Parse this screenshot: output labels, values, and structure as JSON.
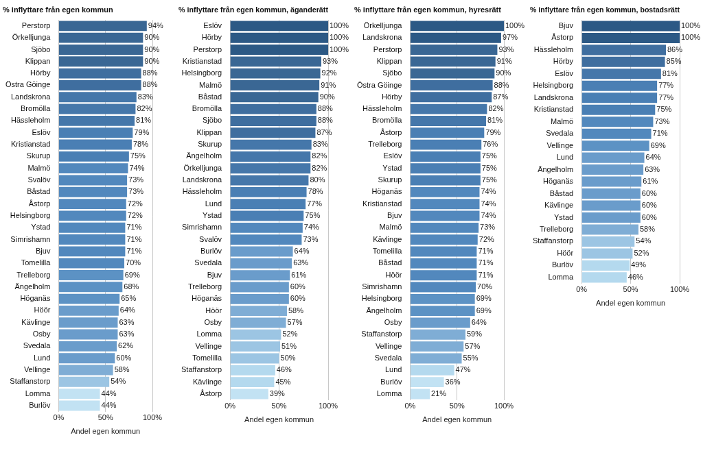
{
  "chart_data": [
    {
      "type": "bar",
      "orientation": "horizontal",
      "title": "% inflyttare från egen kommun",
      "x_label": "Andel egen kommun",
      "categories": [
        "Perstorp",
        "Örkelljunga",
        "Sjöbo",
        "Klippan",
        "Hörby",
        "Östra Göinge",
        "Landskrona",
        "Bromölla",
        "Hässleholm",
        "Eslöv",
        "Kristianstad",
        "Skurup",
        "Malmö",
        "Svalöv",
        "Båstad",
        "Åstorp",
        "Helsingborg",
        "Ystad",
        "Simrishamn",
        "Bjuv",
        "Tomelilla",
        "Trelleborg",
        "Ängelholm",
        "Höganäs",
        "Höör",
        "Kävlinge",
        "Osby",
        "Svedala",
        "Lund",
        "Vellinge",
        "Staffanstorp",
        "Lomma",
        "Burlöv"
      ],
      "values": [
        94,
        90,
        90,
        90,
        88,
        88,
        83,
        82,
        81,
        79,
        78,
        75,
        74,
        73,
        73,
        72,
        72,
        71,
        71,
        71,
        70,
        69,
        68,
        65,
        64,
        63,
        63,
        62,
        60,
        58,
        54,
        44,
        44
      ],
      "value_labels": [
        "94%",
        "90%",
        "90%",
        "90%",
        "88%",
        "88%",
        "83%",
        "82%",
        "81%",
        "79%",
        "78%",
        "75%",
        "74%",
        "73%",
        "73%",
        "72%",
        "72%",
        "71%",
        "71%",
        "71%",
        "70%",
        "69%",
        "68%",
        "65%",
        "64%",
        "63%",
        "63%",
        "62%",
        "60%",
        "58%",
        "54%",
        "44%",
        "44%"
      ],
      "colors": [
        "#3a6794",
        "#3a6794",
        "#3a6794",
        "#3a6794",
        "#3f6e9f",
        "#3f6e9f",
        "#4577aa",
        "#4577aa",
        "#4577aa",
        "#4a7fb4",
        "#4a7fb4",
        "#4a7fb4",
        "#5288bd",
        "#5288bd",
        "#5288bd",
        "#5288bd",
        "#5288bd",
        "#5288bd",
        "#5288bd",
        "#5288bd",
        "#5288bd",
        "#5c92c4",
        "#5c92c4",
        "#5c92c4",
        "#6a9ccb",
        "#6a9ccb",
        "#6a9ccb",
        "#6a9ccb",
        "#6a9ccb",
        "#7fadd5",
        "#9cc5e3",
        "#c2e2f3",
        "#c2e2f3"
      ],
      "xlim": [
        0,
        100
      ],
      "xticks": [
        {
          "value": 0,
          "label": "0%"
        },
        {
          "value": 50,
          "label": "50%"
        },
        {
          "value": 100,
          "label": "100%"
        }
      ],
      "grid": true,
      "data_labels": true
    },
    {
      "type": "bar",
      "orientation": "horizontal",
      "title": "% inflyttare från egen kommun, äganderätt",
      "x_label": "Andel egen kommun",
      "categories": [
        "Eslöv",
        "Hörby",
        "Perstorp",
        "Kristianstad",
        "Helsingborg",
        "Malmö",
        "Båstad",
        "Bromölla",
        "Sjöbo",
        "Klippan",
        "Skurup",
        "Ängelholm",
        "Örkelljunga",
        "Landskrona",
        "Hässleholm",
        "Lund",
        "Ystad",
        "Simrishamn",
        "Svalöv",
        "Burlöv",
        "Svedala",
        "Bjuv",
        "Trelleborg",
        "Höganäs",
        "Höör",
        "Osby",
        "Lomma",
        "Vellinge",
        "Tomelilla",
        "Staffanstorp",
        "Kävlinge",
        "Åstorp"
      ],
      "values": [
        100,
        100,
        100,
        93,
        92,
        91,
        90,
        88,
        88,
        87,
        83,
        82,
        82,
        80,
        78,
        77,
        75,
        74,
        73,
        64,
        63,
        61,
        60,
        60,
        58,
        57,
        52,
        51,
        50,
        46,
        45,
        39
      ],
      "value_labels": [
        "100%",
        "100%",
        "100%",
        "93%",
        "92%",
        "91%",
        "90%",
        "88%",
        "88%",
        "87%",
        "83%",
        "82%",
        "82%",
        "80%",
        "78%",
        "77%",
        "75%",
        "74%",
        "73%",
        "64%",
        "63%",
        "61%",
        "60%",
        "60%",
        "58%",
        "57%",
        "52%",
        "51%",
        "50%",
        "46%",
        "45%",
        "39%"
      ],
      "colors": [
        "#2c5985",
        "#2c5985",
        "#2c5985",
        "#3a6794",
        "#3a6794",
        "#3a6794",
        "#3a6794",
        "#3f6e9f",
        "#3f6e9f",
        "#3f6e9f",
        "#4577aa",
        "#4577aa",
        "#4577aa",
        "#4577aa",
        "#4a7fb4",
        "#4a7fb4",
        "#4a7fb4",
        "#5288bd",
        "#5288bd",
        "#6a9ccb",
        "#6a9ccb",
        "#6a9ccb",
        "#6a9ccb",
        "#6a9ccb",
        "#7fadd5",
        "#7fadd5",
        "#9cc5e3",
        "#9cc5e3",
        "#9cc5e3",
        "#b4d9ee",
        "#b4d9ee",
        "#c2e2f3"
      ],
      "xlim": [
        0,
        100
      ],
      "xticks": [
        {
          "value": 0,
          "label": "0%"
        },
        {
          "value": 50,
          "label": "50%"
        },
        {
          "value": 100,
          "label": "100%"
        }
      ],
      "grid": true,
      "data_labels": true
    },
    {
      "type": "bar",
      "orientation": "horizontal",
      "title": "% inflyttare från egen kommun, hyresrätt",
      "x_label": "Andel egen kommun",
      "categories": [
        "Örkelljunga",
        "Landskrona",
        "Perstorp",
        "Klippan",
        "Sjöbo",
        "Östra Göinge",
        "Hörby",
        "Hässleholm",
        "Bromölla",
        "Åstorp",
        "Trelleborg",
        "Eslöv",
        "Ystad",
        "Skurup",
        "Höganäs",
        "Kristianstad",
        "Bjuv",
        "Malmö",
        "Kävlinge",
        "Tomelilla",
        "Båstad",
        "Höör",
        "Simrishamn",
        "Helsingborg",
        "Ängelholm",
        "Osby",
        "Staffanstorp",
        "Vellinge",
        "Svedala",
        "Lund",
        "Burlöv",
        "Lomma"
      ],
      "values": [
        100,
        97,
        93,
        91,
        90,
        88,
        87,
        82,
        81,
        79,
        76,
        75,
        75,
        75,
        74,
        74,
        74,
        73,
        72,
        71,
        71,
        71,
        70,
        69,
        69,
        64,
        59,
        57,
        55,
        47,
        36,
        21
      ],
      "value_labels": [
        "100%",
        "97%",
        "93%",
        "91%",
        "90%",
        "88%",
        "87%",
        "82%",
        "81%",
        "79%",
        "76%",
        "75%",
        "75%",
        "75%",
        "74%",
        "74%",
        "74%",
        "73%",
        "72%",
        "71%",
        "71%",
        "71%",
        "70%",
        "69%",
        "69%",
        "64%",
        "59%",
        "57%",
        "55%",
        "47%",
        "36%",
        "21%"
      ],
      "colors": [
        "#2c5985",
        "#2c5985",
        "#3a6794",
        "#3a6794",
        "#3a6794",
        "#3f6e9f",
        "#3f6e9f",
        "#4577aa",
        "#4577aa",
        "#4a7fb4",
        "#4a7fb4",
        "#4a7fb4",
        "#4a7fb4",
        "#4a7fb4",
        "#5288bd",
        "#5288bd",
        "#5288bd",
        "#5288bd",
        "#5288bd",
        "#5288bd",
        "#5288bd",
        "#5288bd",
        "#5288bd",
        "#5c92c4",
        "#5c92c4",
        "#6a9ccb",
        "#7fadd5",
        "#7fadd5",
        "#7fadd5",
        "#b4d9ee",
        "#c2e2f3",
        "#c2e2f3"
      ],
      "xlim": [
        0,
        100
      ],
      "xticks": [
        {
          "value": 0,
          "label": "0%"
        },
        {
          "value": 50,
          "label": "50%"
        },
        {
          "value": 100,
          "label": "100%"
        }
      ],
      "grid": true,
      "data_labels": true
    },
    {
      "type": "bar",
      "orientation": "horizontal",
      "title": "% inflyttare från egen kommun, bostadsrätt",
      "x_label": "Andel egen kommun",
      "categories": [
        "Bjuv",
        "Åstorp",
        "Hässleholm",
        "Hörby",
        "Eslöv",
        "Helsingborg",
        "Landskrona",
        "Kristianstad",
        "Malmö",
        "Svedala",
        "Vellinge",
        "Lund",
        "Ängelholm",
        "Höganäs",
        "Båstad",
        "Kävlinge",
        "Ystad",
        "Trelleborg",
        "Staffanstorp",
        "Höör",
        "Burlöv",
        "Lomma"
      ],
      "values": [
        100,
        100,
        86,
        85,
        81,
        77,
        77,
        75,
        73,
        71,
        69,
        64,
        63,
        61,
        60,
        60,
        60,
        58,
        54,
        52,
        49,
        46
      ],
      "value_labels": [
        "100%",
        "100%",
        "86%",
        "85%",
        "81%",
        "77%",
        "77%",
        "75%",
        "73%",
        "71%",
        "69%",
        "64%",
        "63%",
        "61%",
        "60%",
        "60%",
        "60%",
        "58%",
        "54%",
        "52%",
        "49%",
        "46%"
      ],
      "colors": [
        "#2c5985",
        "#2c5985",
        "#3f6e9f",
        "#3f6e9f",
        "#4577aa",
        "#4a7fb4",
        "#4a7fb4",
        "#4a7fb4",
        "#5288bd",
        "#5288bd",
        "#5c92c4",
        "#6a9ccb",
        "#6a9ccb",
        "#6a9ccb",
        "#6a9ccb",
        "#6a9ccb",
        "#6a9ccb",
        "#7fadd5",
        "#9cc5e3",
        "#9cc5e3",
        "#b4d9ee",
        "#b4d9ee"
      ],
      "xlim": [
        0,
        100
      ],
      "xticks": [
        {
          "value": 0,
          "label": "0%"
        },
        {
          "value": 50,
          "label": "50%"
        },
        {
          "value": 100,
          "label": "100%"
        }
      ],
      "grid": true,
      "data_labels": true
    }
  ]
}
